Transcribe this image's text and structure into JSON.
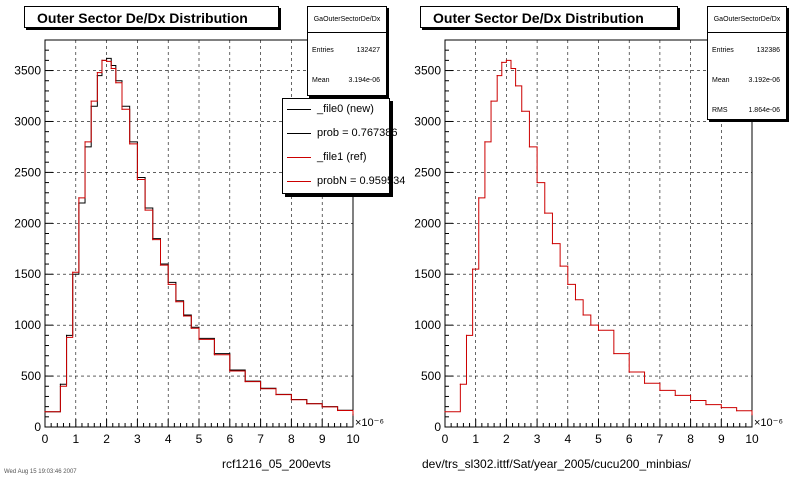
{
  "chart_data": [
    {
      "type": "line",
      "title": "Outer Sector De/Dx Distribution",
      "xlabel": "rcf1216_05_200evts",
      "x_exponent": "×10⁻⁶",
      "xlim": [
        0,
        10
      ],
      "ylim": [
        0,
        3800
      ],
      "x_ticks": [
        0,
        1,
        2,
        3,
        4,
        5,
        6,
        7,
        8,
        9,
        10
      ],
      "y_ticks": [
        0,
        500,
        1000,
        1500,
        2000,
        2500,
        3000,
        3500
      ],
      "grid": true,
      "stats": {
        "name": "GaOuterSectorDe/Dx",
        "rows": [
          {
            "key": "Entries",
            "value": "132427"
          },
          {
            "key": "Mean",
            "value": "3.194e-06"
          }
        ]
      },
      "legend": [
        {
          "label": "_file0 (new)",
          "color": "#000000"
        },
        {
          "label": "prob = 0.767386",
          "color": "#000000"
        },
        {
          "label": "_file1 (ref)",
          "color": "#cc0000"
        },
        {
          "label": "probN = 0.959534",
          "color": "#cc0000"
        }
      ],
      "series": [
        {
          "name": "_file0 (new)",
          "color": "#000000",
          "points": [
            [
              0.0,
              150
            ],
            [
              0.5,
              420
            ],
            [
              0.7,
              900
            ],
            [
              0.9,
              1500
            ],
            [
              1.1,
              2200
            ],
            [
              1.3,
              2750
            ],
            [
              1.5,
              3150
            ],
            [
              1.7,
              3450
            ],
            [
              1.85,
              3600
            ],
            [
              2.0,
              3620
            ],
            [
              2.15,
              3550
            ],
            [
              2.3,
              3400
            ],
            [
              2.5,
              3150
            ],
            [
              2.75,
              2800
            ],
            [
              3.0,
              2450
            ],
            [
              3.25,
              2150
            ],
            [
              3.5,
              1850
            ],
            [
              3.75,
              1600
            ],
            [
              4.0,
              1420
            ],
            [
              4.25,
              1240
            ],
            [
              4.5,
              1100
            ],
            [
              4.75,
              980
            ],
            [
              5.0,
              870
            ],
            [
              5.5,
              720
            ],
            [
              6.0,
              560
            ],
            [
              6.5,
              450
            ],
            [
              7.0,
              380
            ],
            [
              7.5,
              320
            ],
            [
              8.0,
              270
            ],
            [
              8.5,
              230
            ],
            [
              9.0,
              200
            ],
            [
              9.5,
              165
            ],
            [
              10.0,
              120
            ]
          ]
        },
        {
          "name": "_file1 (ref)",
          "color": "#cc0000",
          "points": [
            [
              0.0,
              150
            ],
            [
              0.5,
              400
            ],
            [
              0.7,
              880
            ],
            [
              0.9,
              1520
            ],
            [
              1.1,
              2250
            ],
            [
              1.3,
              2800
            ],
            [
              1.5,
              3200
            ],
            [
              1.7,
              3480
            ],
            [
              1.85,
              3600
            ],
            [
              2.0,
              3590
            ],
            [
              2.15,
              3520
            ],
            [
              2.3,
              3380
            ],
            [
              2.5,
              3120
            ],
            [
              2.75,
              2780
            ],
            [
              3.0,
              2430
            ],
            [
              3.25,
              2130
            ],
            [
              3.5,
              1840
            ],
            [
              3.75,
              1590
            ],
            [
              4.0,
              1400
            ],
            [
              4.25,
              1230
            ],
            [
              4.5,
              1090
            ],
            [
              4.75,
              970
            ],
            [
              5.0,
              860
            ],
            [
              5.5,
              710
            ],
            [
              6.0,
              550
            ],
            [
              6.5,
              445
            ],
            [
              7.0,
              375
            ],
            [
              7.5,
              318
            ],
            [
              8.0,
              268
            ],
            [
              8.5,
              228
            ],
            [
              9.0,
              198
            ],
            [
              9.5,
              162
            ],
            [
              10.0,
              118
            ]
          ]
        }
      ]
    },
    {
      "type": "line",
      "title": "Outer Sector De/Dx Distribution",
      "xlabel": "dev/trs_sl302.ittf/Sat/year_2005/cucu200_minbias/",
      "x_exponent": "×10⁻⁶",
      "xlim": [
        0,
        10
      ],
      "ylim": [
        0,
        3800
      ],
      "x_ticks": [
        0,
        1,
        2,
        3,
        4,
        5,
        6,
        7,
        8,
        9,
        10
      ],
      "y_ticks": [
        0,
        500,
        1000,
        1500,
        2000,
        2500,
        3000,
        3500
      ],
      "grid": true,
      "stats": {
        "name": "GaOuterSectorDe/Dx",
        "rows": [
          {
            "key": "Entries",
            "value": "132386"
          },
          {
            "key": "Mean",
            "value": "3.192e-06"
          },
          {
            "key": "RMS",
            "value": "1.864e-06"
          }
        ]
      },
      "series": [
        {
          "name": "",
          "color": "#cc0000",
          "points": [
            [
              0.0,
              150
            ],
            [
              0.5,
              420
            ],
            [
              0.7,
              900
            ],
            [
              0.9,
              1550
            ],
            [
              1.1,
              2250
            ],
            [
              1.3,
              2800
            ],
            [
              1.5,
              3200
            ],
            [
              1.7,
              3450
            ],
            [
              1.85,
              3580
            ],
            [
              2.0,
              3600
            ],
            [
              2.15,
              3520
            ],
            [
              2.3,
              3350
            ],
            [
              2.5,
              3100
            ],
            [
              2.75,
              2750
            ],
            [
              3.0,
              2400
            ],
            [
              3.25,
              2100
            ],
            [
              3.5,
              1800
            ],
            [
              3.75,
              1580
            ],
            [
              4.0,
              1400
            ],
            [
              4.25,
              1250
            ],
            [
              4.5,
              1100
            ],
            [
              4.75,
              1000
            ],
            [
              5.0,
              950
            ],
            [
              5.5,
              720
            ],
            [
              6.0,
              540
            ],
            [
              6.5,
              430
            ],
            [
              7.0,
              360
            ],
            [
              7.5,
              310
            ],
            [
              8.0,
              260
            ],
            [
              8.5,
              220
            ],
            [
              9.0,
              190
            ],
            [
              9.5,
              160
            ],
            [
              10.0,
              120
            ]
          ]
        }
      ]
    }
  ],
  "footer_note": "Wed Aug 15 19:03:46 2007"
}
